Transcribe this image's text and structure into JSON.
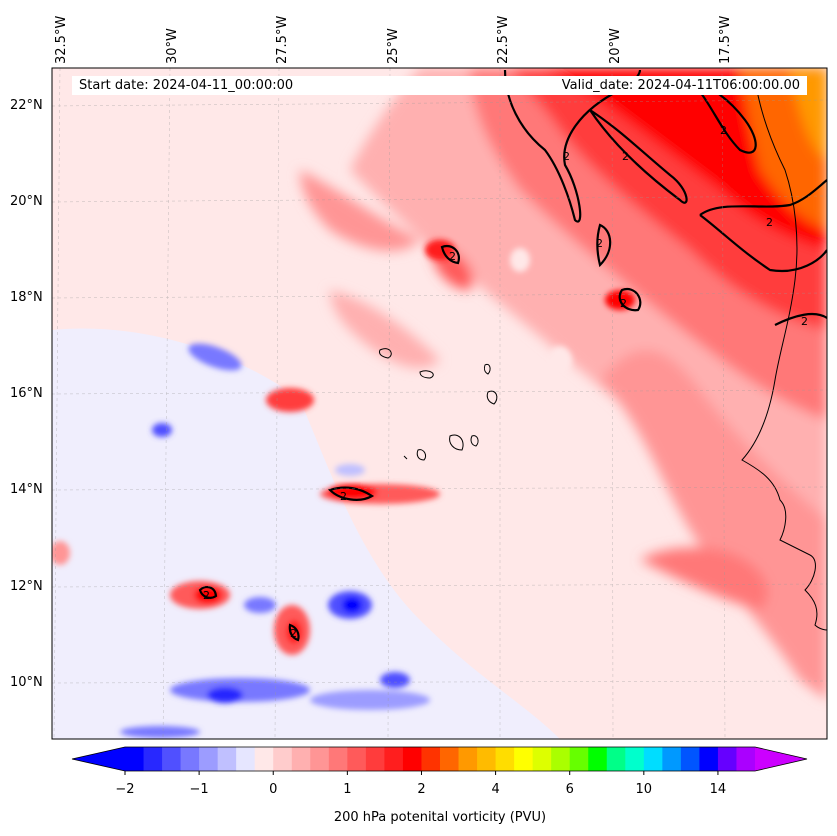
{
  "header": {
    "start_date": "Start date: 2024-04-11_00:00:00",
    "valid_date": "Valid_date: 2024-04-11T06:00:00.00"
  },
  "longitude_labels": [
    "32.5°W",
    "30°W",
    "27.5°W",
    "25°W",
    "22.5°W",
    "20°W",
    "17.5°W"
  ],
  "latitude_labels": [
    "22°N",
    "20°N",
    "18°N",
    "16°N",
    "14°N",
    "12°N",
    "10°N"
  ],
  "colorbar": {
    "title": "200 hPa potenital vorticity (PVU)",
    "tick_labels": [
      "−2",
      "−1",
      "0",
      "1",
      "2",
      "4",
      "6",
      "10",
      "14"
    ],
    "levels": [
      -2,
      -1.75,
      -1.5,
      -1.25,
      -1,
      -0.75,
      -0.5,
      -0.25,
      0,
      0.25,
      0.5,
      0.75,
      1,
      1.25,
      1.5,
      1.75,
      2,
      2.5,
      3,
      3.5,
      4,
      4.5,
      5,
      5.5,
      6,
      7,
      8,
      9,
      10,
      11,
      12,
      13,
      14,
      15
    ],
    "colors": [
      "#0000ff",
      "#2828ff",
      "#5050ff",
      "#7878ff",
      "#9c9cff",
      "#c0c0ff",
      "#e6e6ff",
      "#ffe8e8",
      "#ffcccc",
      "#ffb0b0",
      "#ff9595",
      "#ff7878",
      "#ff5a5a",
      "#ff3c3c",
      "#ff1e1e",
      "#ff0000",
      "#ff3300",
      "#ff6600",
      "#ff9900",
      "#ffbb00",
      "#ffdd00",
      "#ffff00",
      "#ddff00",
      "#aaff00",
      "#66ff00",
      "#00ff00",
      "#00ff88",
      "#00ffcc",
      "#00ddff",
      "#0099ff",
      "#0055ff",
      "#0000ff",
      "#6600ff",
      "#aa00ff"
    ],
    "under_color": "#0000ff",
    "over_color": "#cc00ff"
  },
  "contour_label": "2",
  "map": {
    "lon_range": [
      -33,
      -15.5
    ],
    "lat_range": [
      9,
      22.8
    ],
    "contour_level_pvu": 2
  }
}
